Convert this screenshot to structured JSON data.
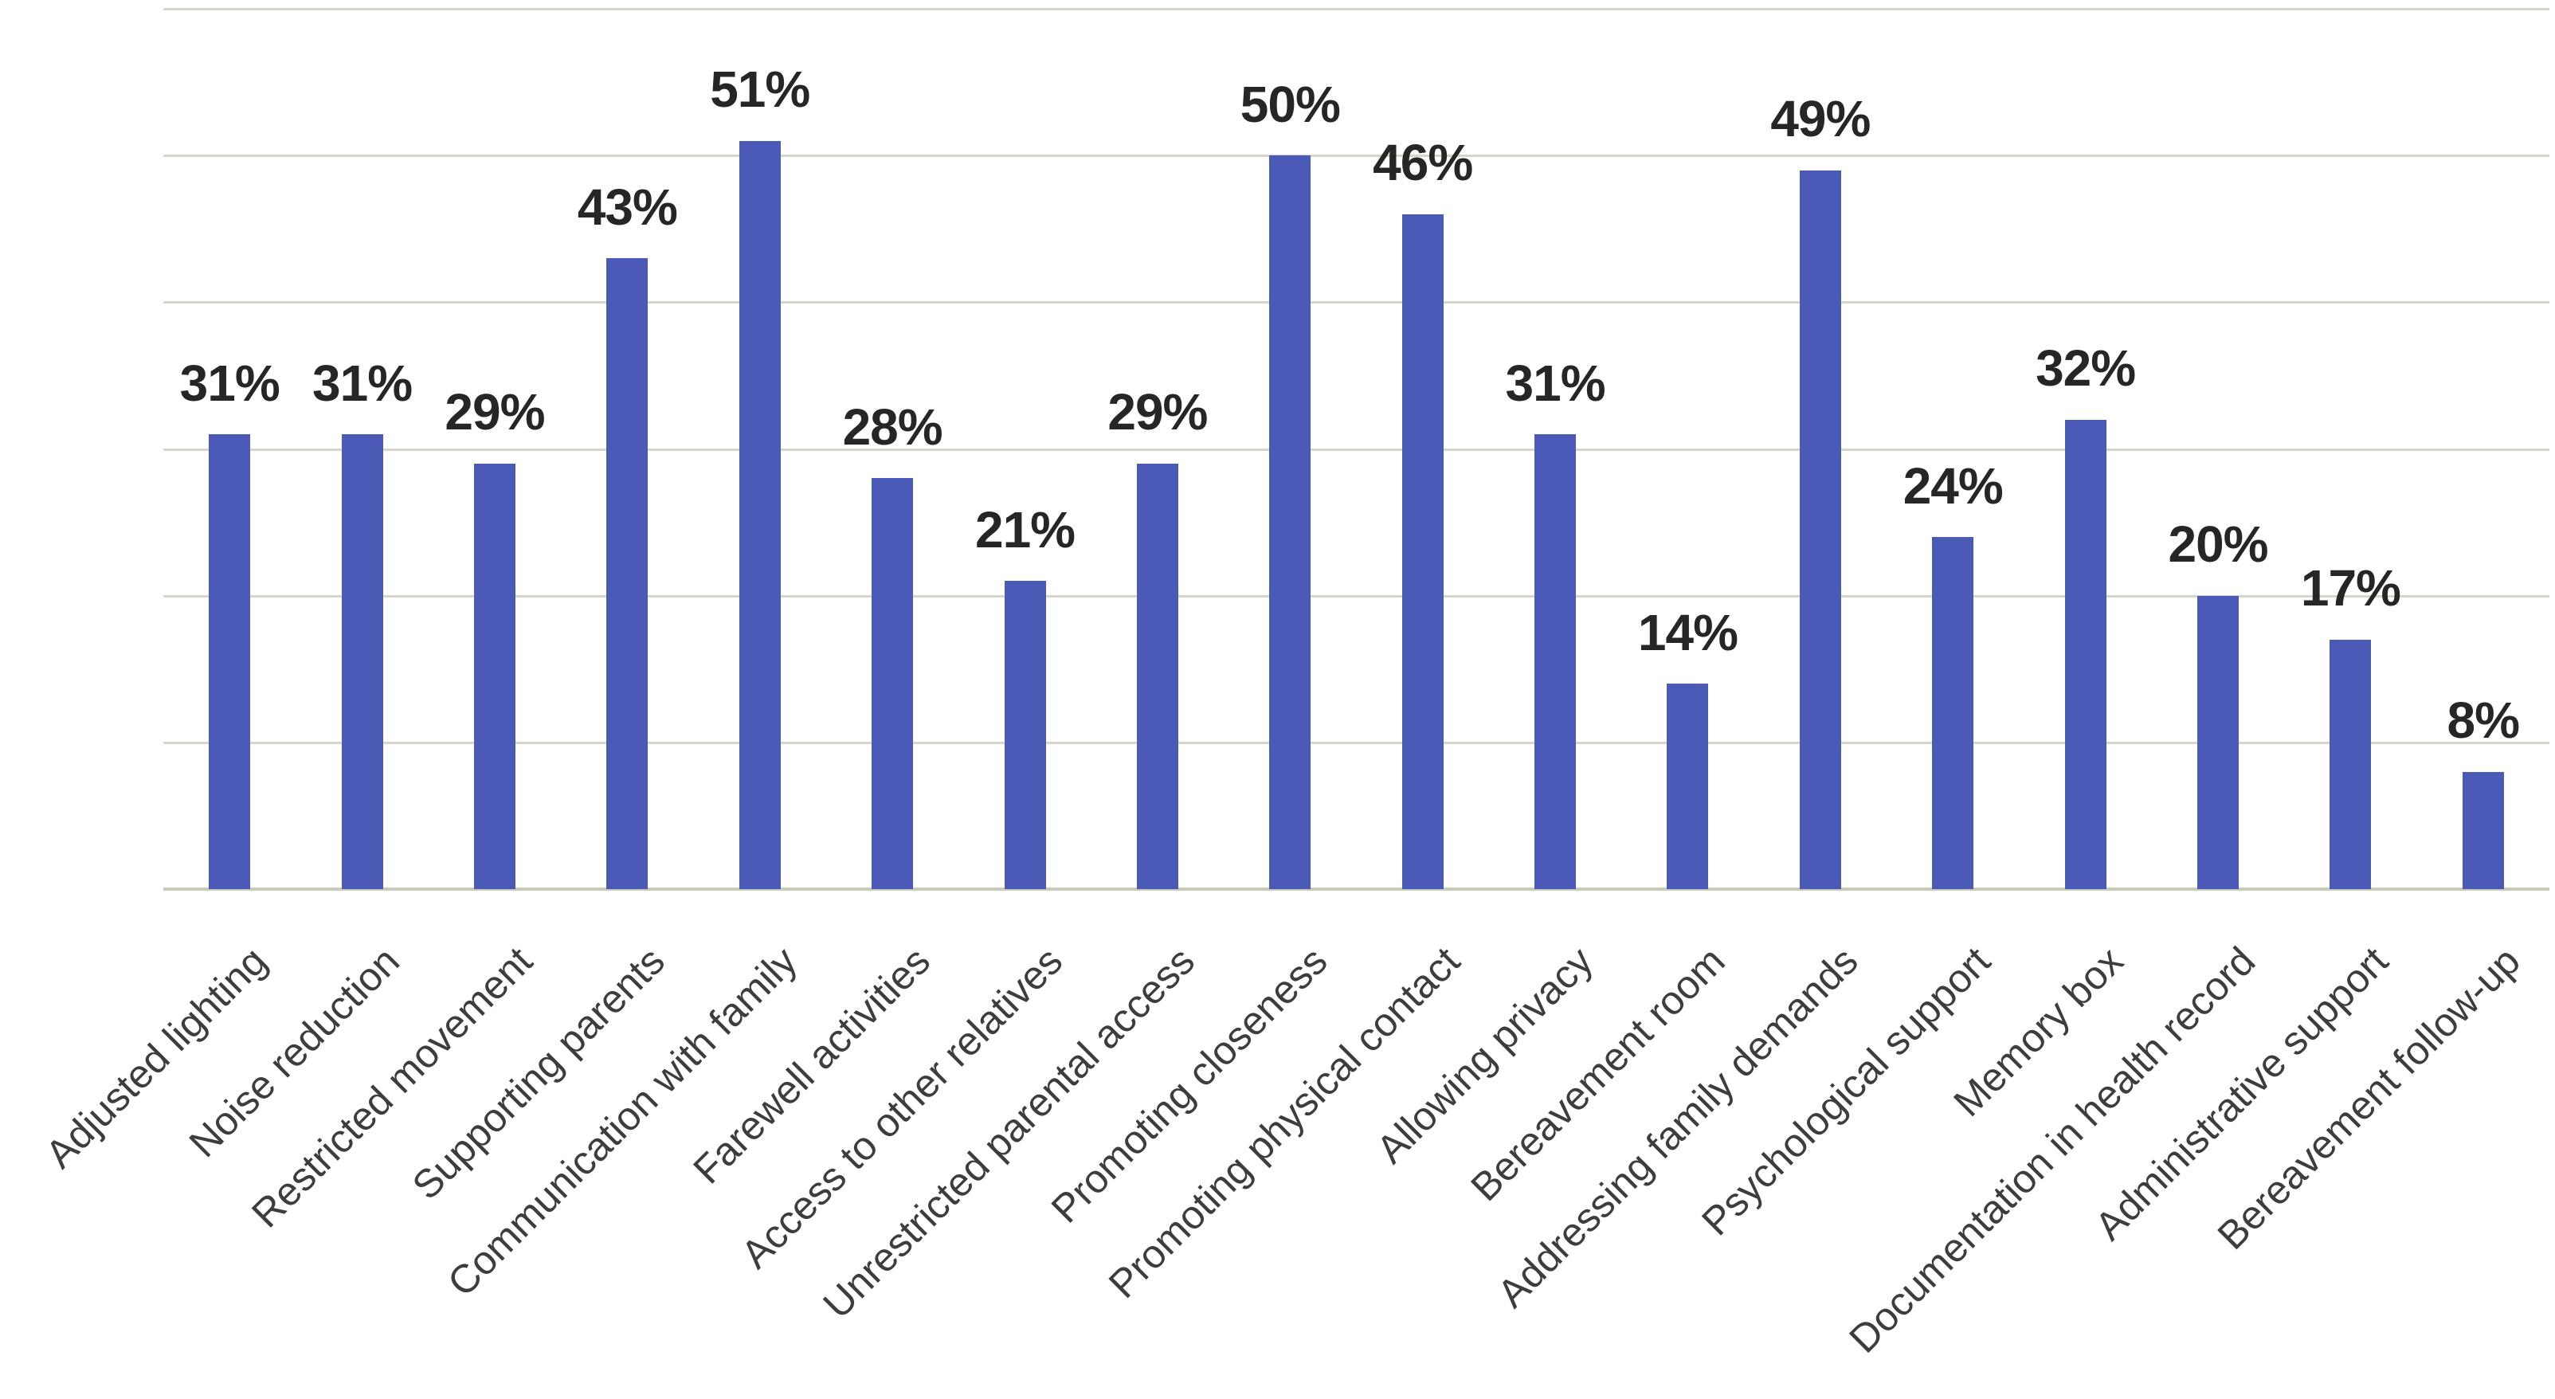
{
  "chart_data": {
    "type": "bar",
    "title": "",
    "xlabel": "",
    "ylabel": "",
    "categories": [
      "Adjusted lighting",
      "Noise reduction",
      "Restricted movement",
      "Supporting parents",
      "Communication with family",
      "Farewell activities",
      "Access to other relatives",
      "Unrestricted parental access",
      "Promoting closeness",
      "Promoting physical contact",
      "Allowing privacy",
      "Bereavement room",
      "Addressing family demands",
      "Psychological support",
      "Memory box",
      "Documentation in health record",
      "Administrative support",
      "Bereavement follow-up"
    ],
    "values": [
      31,
      31,
      29,
      43,
      51,
      28,
      21,
      29,
      50,
      46,
      31,
      14,
      49,
      24,
      32,
      20,
      17,
      8
    ],
    "value_labels": [
      "31%",
      "31%",
      "29%",
      "43%",
      "51%",
      "28%",
      "21%",
      "29%",
      "50%",
      "46%",
      "31%",
      "14%",
      "49%",
      "24%",
      "32%",
      "20%",
      "17%",
      "8%"
    ],
    "ylim": [
      0,
      60
    ],
    "gridline_step_percent": 10,
    "grid": true,
    "legend": false,
    "y_tick_labels_visible": false,
    "x_labels_rotation_deg": 45,
    "colors": {
      "bar": "#4a5ab6",
      "gridline": "#d6d7c9",
      "axis_line": "#c9cbb8",
      "value_label": "#262626",
      "x_label": "#3d3d3d",
      "background": "#ffffff"
    }
  }
}
